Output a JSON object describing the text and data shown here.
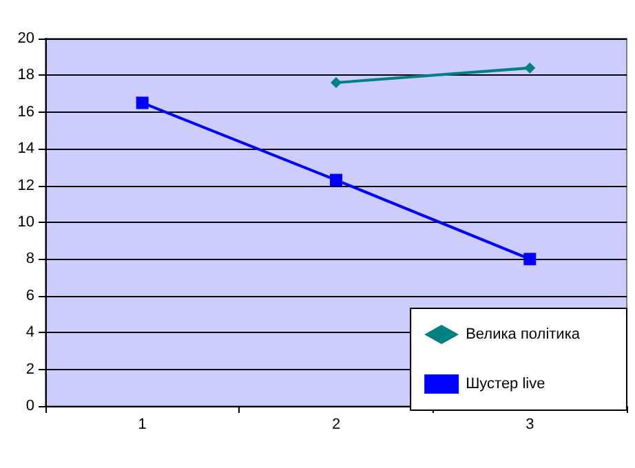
{
  "chart_data": {
    "type": "line",
    "categories": [
      "1",
      "2",
      "3"
    ],
    "series": [
      {
        "name": "Велика політика",
        "color": "#008080",
        "marker": "diamond",
        "values": [
          null,
          17.6,
          18.4
        ]
      },
      {
        "name": "Шустер live",
        "color": "#0000ff",
        "marker": "square",
        "values": [
          16.5,
          12.3,
          8.0
        ]
      }
    ],
    "ylim": [
      0,
      20
    ],
    "yticks": [
      0,
      2,
      4,
      6,
      8,
      10,
      12,
      14,
      16,
      18,
      20
    ],
    "grid": "y",
    "legend": "bottom right"
  }
}
